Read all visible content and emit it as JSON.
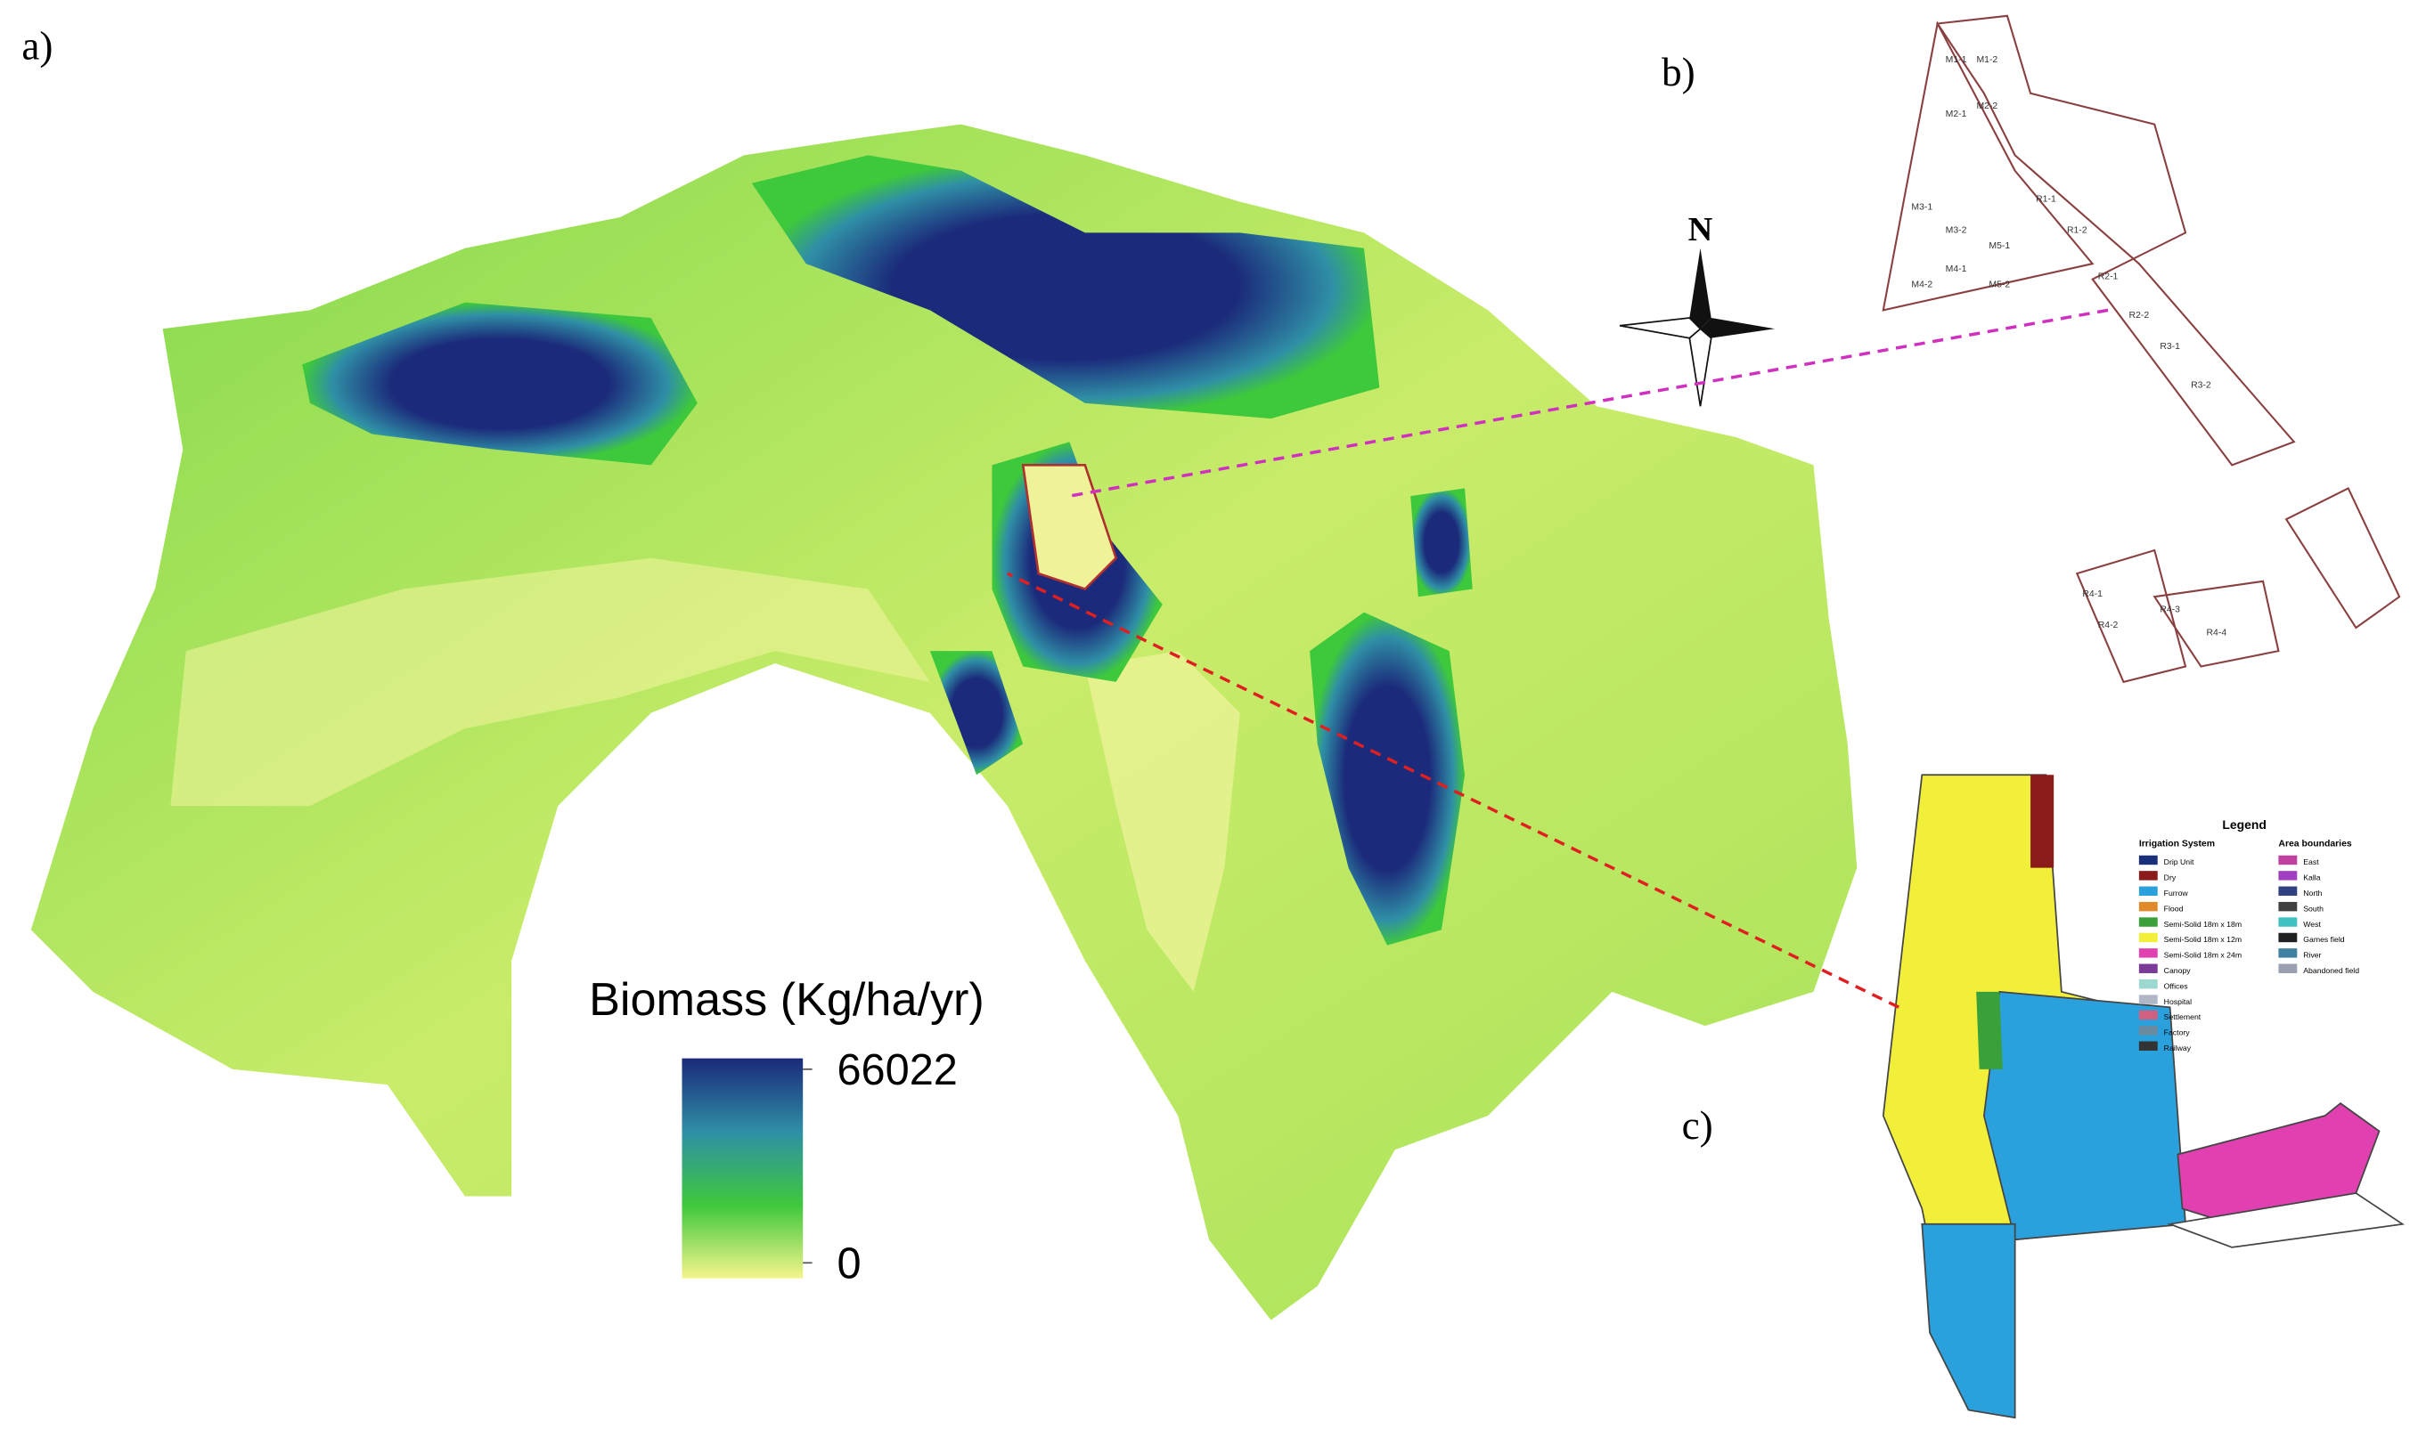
{
  "panels": {
    "a": "a)",
    "b": "b)",
    "c": "c)"
  },
  "compass": {
    "label": "N"
  },
  "colorbar": {
    "title": "Biomass (Kg/ha/yr)",
    "ticks": [
      66022,
      0
    ],
    "colors": [
      "#1b2a7a",
      "#2f8fa6",
      "#3ec83c",
      "#f5f58c"
    ]
  },
  "inset_b": {
    "blocks": [
      "M1-1",
      "M1-2",
      "M2-1",
      "M2-2",
      "M3-1",
      "M3-2",
      "M4-1",
      "M4-2",
      "M5-1",
      "M5-2",
      "R1-1",
      "R1-2",
      "R2-1",
      "R2-2",
      "R3-1",
      "R3-2",
      "R4-1",
      "R4-2",
      "R4-3",
      "R4-4"
    ]
  },
  "inset_c": {
    "legend_title": "Legend",
    "irrigation_title": "Irrigation System",
    "irrigation": [
      {
        "label": "Drip Unit",
        "color": "#1a2f7a"
      },
      {
        "label": "Dry",
        "color": "#8b1a1a"
      },
      {
        "label": "Furrow",
        "color": "#2aa0dc"
      },
      {
        "label": "Flood",
        "color": "#e08a2a"
      },
      {
        "label": "Semi-Solid 18m x 18m",
        "color": "#3aa03a"
      },
      {
        "label": "Semi-Solid 18m x 12m",
        "color": "#f2ef3a"
      },
      {
        "label": "Semi-Solid 18m x 24m",
        "color": "#e040b0"
      },
      {
        "label": "Canopy",
        "color": "#7a3a9a"
      },
      {
        "label": "Offices",
        "color": "#9ad8d0"
      },
      {
        "label": "Hospital",
        "color": "#b0b8c8"
      },
      {
        "label": "Settlement",
        "color": "#d06080"
      },
      {
        "label": "Factory",
        "color": "#6a8aa0"
      },
      {
        "label": "Railway",
        "color": "#333333"
      }
    ],
    "boundary_title": "Area boundaries",
    "boundaries": [
      {
        "label": "East",
        "color": "#c040a0"
      },
      {
        "label": "Kalla",
        "color": "#a040c0"
      },
      {
        "label": "North",
        "color": "#304080"
      },
      {
        "label": "South",
        "color": "#404040"
      },
      {
        "label": "West",
        "color": "#40c0c0"
      },
      {
        "label": "Games field",
        "color": "#202020"
      },
      {
        "label": "River",
        "color": "#4080a0"
      },
      {
        "label": "Abandoned field",
        "color": "#9aa0b0"
      }
    ]
  }
}
